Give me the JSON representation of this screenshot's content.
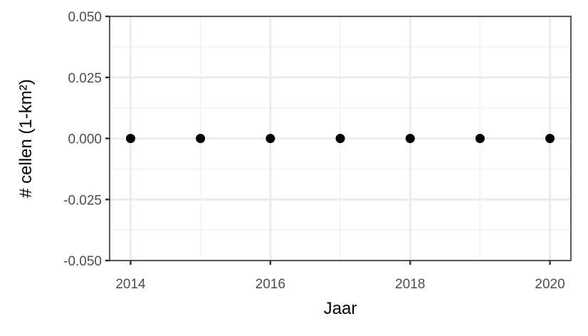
{
  "chart_data": {
    "type": "scatter",
    "title": "",
    "xlabel": "Jaar",
    "ylabel": "# cellen (1-km²)",
    "x": [
      2014,
      2015,
      2016,
      2017,
      2018,
      2019,
      2020
    ],
    "y": [
      0,
      0,
      0,
      0,
      0,
      0,
      0
    ],
    "xlim": [
      2013.7,
      2020.3
    ],
    "ylim": [
      -0.05,
      0.05
    ],
    "x_ticks": [
      2014,
      2016,
      2018,
      2020
    ],
    "x_tick_labels": [
      "2014",
      "2016",
      "2018",
      "2020"
    ],
    "x_minor_ticks": [
      2015,
      2017,
      2019
    ],
    "y_ticks": [
      -0.05,
      -0.025,
      0,
      0.025,
      0.05
    ],
    "y_tick_labels": [
      "-0.050",
      "-0.025",
      "0.000",
      "0.025",
      "0.050"
    ],
    "y_minor_ticks": [
      -0.0375,
      -0.0125,
      0.0125,
      0.0375
    ],
    "grid": true,
    "legend": "none",
    "colors": {
      "points": "#000000",
      "grid_major": "#ebebeb",
      "grid_minor": "#f3f3f3",
      "panel_border": "#333333",
      "tick_text": "#4d4d4d"
    }
  }
}
